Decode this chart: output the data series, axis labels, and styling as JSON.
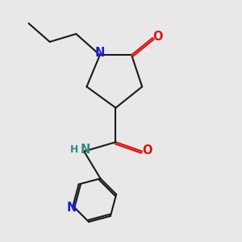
{
  "bg_color": "#e8e8e8",
  "bond_color": "#1a1a1a",
  "N_color": "#2020cc",
  "O_color": "#dd1111",
  "NH_color": "#338888",
  "lw": 1.5,
  "font_size": 10.5,
  "xlim": [
    1.0,
    9.0
  ],
  "ylim": [
    0.5,
    9.5
  ]
}
